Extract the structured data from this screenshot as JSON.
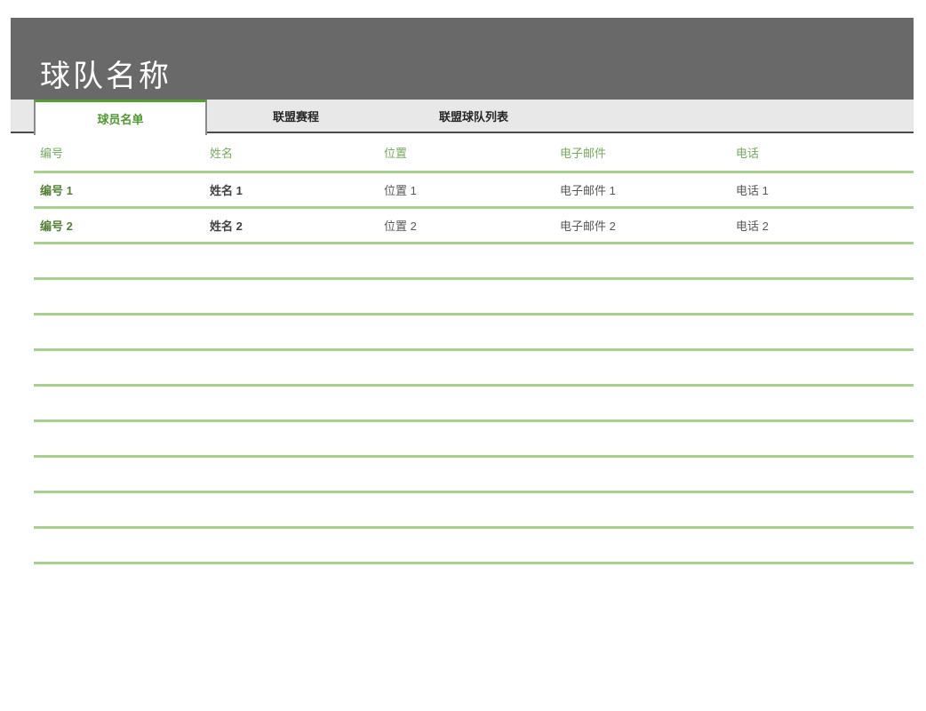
{
  "page": {
    "title": "球队名称"
  },
  "tabs": [
    {
      "label": "球员名单",
      "active": true
    },
    {
      "label": "联盟赛程",
      "active": false
    },
    {
      "label": "联盟球队列表",
      "active": false
    }
  ],
  "table": {
    "columns": [
      "编号",
      "姓名",
      "位置",
      "电子邮件",
      "电话"
    ],
    "rows": [
      [
        "编号 1",
        "姓名 1",
        "位置 1",
        "电子邮件 1",
        "电话 1"
      ],
      [
        "编号 2",
        "姓名 2",
        "位置 2",
        "电子邮件 2",
        "电话 2"
      ]
    ],
    "empty_row_count": 9
  },
  "colors": {
    "banner_bg": "#696969",
    "banner_text": "#ffffff",
    "tab_strip_bg": "#e8e8e8",
    "tab_strip_border": "#4b4b4b",
    "active_tab_accent": "#54a02c",
    "active_tab_text": "#4e9a2e",
    "inactive_tab_text": "#262626",
    "column_header_text": "#77aa5e",
    "rule_line": "#a9d18e",
    "id_cell_text": "#538135",
    "name_cell_text": "#404040",
    "cell_text": "#595959"
  }
}
